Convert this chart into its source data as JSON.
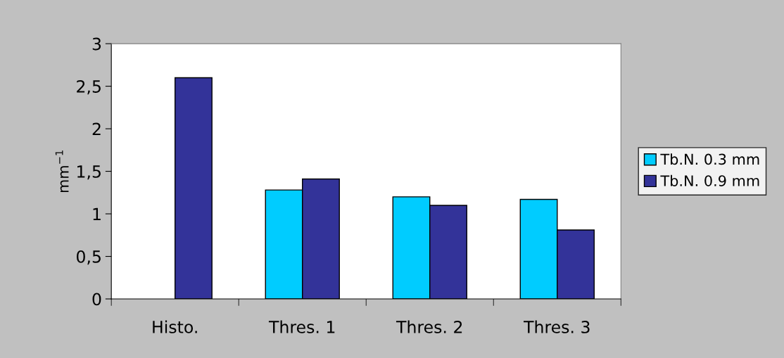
{
  "chart_data": {
    "type": "bar",
    "ylabel": "mm$^{−1}$",
    "categories": [
      "Histo.",
      "Thres. 1",
      "Thres. 2",
      "Thres. 3"
    ],
    "series": [
      {
        "name": "Tb.N. 0.3 mm",
        "color": "#00ccff",
        "values": [
          null,
          1.28,
          1.2,
          1.17
        ]
      },
      {
        "name": "Tb.N. 0.9 mm",
        "color": "#333399",
        "values": [
          2.6,
          1.41,
          1.1,
          0.81
        ]
      }
    ],
    "ylim": [
      0,
      3
    ],
    "yticks": [
      0,
      {
        "value": 0.5,
        "label": "0,5"
      },
      1,
      {
        "value": 1.5,
        "label": "1,5"
      },
      2,
      {
        "value": 2.5,
        "label": "2,5"
      },
      3
    ],
    "grid": false,
    "legend": "right"
  }
}
